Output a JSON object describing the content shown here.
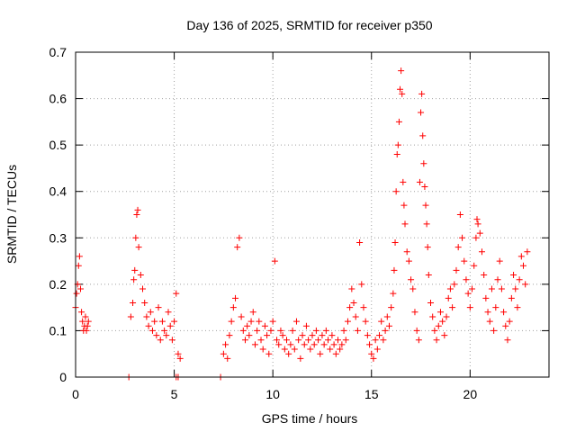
{
  "chart_data": {
    "type": "scatter",
    "title": "Day 136 of 2025, SRMTID for receiver p350",
    "xlabel": "GPS time / hours",
    "ylabel": "SRMTID / TECUs",
    "xlim": [
      0,
      24
    ],
    "ylim": [
      0,
      0.7
    ],
    "xticks": [
      {
        "value": 0,
        "label": "0"
      },
      {
        "value": 5,
        "label": "5"
      },
      {
        "value": 10,
        "label": "10"
      },
      {
        "value": 15,
        "label": "15"
      },
      {
        "value": 20,
        "label": "20"
      }
    ],
    "yticks": [
      {
        "value": 0,
        "label": "0"
      },
      {
        "value": 0.1,
        "label": "0.1"
      },
      {
        "value": 0.2,
        "label": "0.2"
      },
      {
        "value": 0.3,
        "label": "0.3"
      },
      {
        "value": 0.4,
        "label": "0.4"
      },
      {
        "value": 0.5,
        "label": "0.5"
      },
      {
        "value": 0.6,
        "label": "0.6"
      },
      {
        "value": 0.7,
        "label": "0.7"
      }
    ],
    "grid": true,
    "marker": "+",
    "color": "#ff0000",
    "series": [
      {
        "name": "SRMTID",
        "points": [
          [
            0.0,
            0.15
          ],
          [
            0.05,
            0.18
          ],
          [
            0.1,
            0.2
          ],
          [
            0.15,
            0.24
          ],
          [
            0.2,
            0.26
          ],
          [
            0.25,
            0.19
          ],
          [
            0.3,
            0.14
          ],
          [
            0.35,
            0.12
          ],
          [
            0.4,
            0.1
          ],
          [
            0.45,
            0.11
          ],
          [
            0.5,
            0.13
          ],
          [
            0.55,
            0.1
          ],
          [
            0.6,
            0.11
          ],
          [
            0.65,
            0.12
          ],
          [
            2.7,
            0.0
          ],
          [
            2.8,
            0.13
          ],
          [
            2.9,
            0.16
          ],
          [
            2.95,
            0.21
          ],
          [
            3.0,
            0.23
          ],
          [
            3.05,
            0.3
          ],
          [
            3.1,
            0.35
          ],
          [
            3.15,
            0.36
          ],
          [
            3.2,
            0.28
          ],
          [
            3.3,
            0.22
          ],
          [
            3.4,
            0.19
          ],
          [
            3.5,
            0.16
          ],
          [
            3.6,
            0.13
          ],
          [
            3.7,
            0.11
          ],
          [
            3.8,
            0.14
          ],
          [
            3.9,
            0.1
          ],
          [
            4.0,
            0.12
          ],
          [
            4.1,
            0.09
          ],
          [
            4.2,
            0.15
          ],
          [
            4.3,
            0.08
          ],
          [
            4.4,
            0.12
          ],
          [
            4.5,
            0.1
          ],
          [
            4.6,
            0.09
          ],
          [
            4.7,
            0.14
          ],
          [
            4.8,
            0.11
          ],
          [
            4.9,
            0.08
          ],
          [
            5.0,
            0.12
          ],
          [
            5.1,
            0.18
          ],
          [
            5.2,
            0.05
          ],
          [
            5.3,
            0.04
          ],
          [
            5.1,
            0.0
          ],
          [
            5.2,
            0.0
          ],
          [
            7.35,
            0.0
          ],
          [
            7.5,
            0.05
          ],
          [
            7.6,
            0.07
          ],
          [
            7.7,
            0.04
          ],
          [
            7.8,
            0.09
          ],
          [
            7.9,
            0.12
          ],
          [
            8.0,
            0.15
          ],
          [
            8.1,
            0.17
          ],
          [
            8.2,
            0.28
          ],
          [
            8.3,
            0.3
          ],
          [
            8.4,
            0.13
          ],
          [
            8.5,
            0.1
          ],
          [
            8.6,
            0.08
          ],
          [
            8.7,
            0.11
          ],
          [
            8.8,
            0.09
          ],
          [
            8.9,
            0.12
          ],
          [
            9.0,
            0.14
          ],
          [
            9.1,
            0.07
          ],
          [
            9.2,
            0.1
          ],
          [
            9.3,
            0.12
          ],
          [
            9.4,
            0.08
          ],
          [
            9.5,
            0.06
          ],
          [
            9.6,
            0.11
          ],
          [
            9.7,
            0.09
          ],
          [
            9.8,
            0.05
          ],
          [
            9.9,
            0.1
          ],
          [
            10.0,
            0.12
          ],
          [
            10.1,
            0.25
          ],
          [
            10.2,
            0.08
          ],
          [
            10.3,
            0.07
          ],
          [
            10.4,
            0.1
          ],
          [
            10.5,
            0.09
          ],
          [
            10.6,
            0.06
          ],
          [
            10.7,
            0.08
          ],
          [
            10.8,
            0.05
          ],
          [
            10.9,
            0.07
          ],
          [
            11.0,
            0.1
          ],
          [
            11.1,
            0.06
          ],
          [
            11.2,
            0.12
          ],
          [
            11.3,
            0.08
          ],
          [
            11.4,
            0.04
          ],
          [
            11.5,
            0.09
          ],
          [
            11.6,
            0.07
          ],
          [
            11.7,
            0.11
          ],
          [
            11.8,
            0.08
          ],
          [
            11.9,
            0.06
          ],
          [
            12.0,
            0.09
          ],
          [
            12.1,
            0.07
          ],
          [
            12.2,
            0.1
          ],
          [
            12.3,
            0.08
          ],
          [
            12.4,
            0.05
          ],
          [
            12.5,
            0.09
          ],
          [
            12.6,
            0.07
          ],
          [
            12.7,
            0.1
          ],
          [
            12.8,
            0.08
          ],
          [
            12.9,
            0.06
          ],
          [
            13.0,
            0.09
          ],
          [
            13.1,
            0.07
          ],
          [
            13.2,
            0.05
          ],
          [
            13.3,
            0.08
          ],
          [
            13.4,
            0.06
          ],
          [
            13.5,
            0.07
          ],
          [
            13.6,
            0.1
          ],
          [
            13.7,
            0.08
          ],
          [
            13.8,
            0.12
          ],
          [
            13.9,
            0.15
          ],
          [
            14.0,
            0.19
          ],
          [
            14.1,
            0.16
          ],
          [
            14.2,
            0.13
          ],
          [
            14.3,
            0.1
          ],
          [
            14.4,
            0.29
          ],
          [
            14.5,
            0.2
          ],
          [
            14.6,
            0.15
          ],
          [
            14.7,
            0.12
          ],
          [
            14.8,
            0.09
          ],
          [
            14.9,
            0.07
          ],
          [
            15.0,
            0.05
          ],
          [
            15.1,
            0.04
          ],
          [
            15.2,
            0.08
          ],
          [
            15.3,
            0.06
          ],
          [
            15.4,
            0.09
          ],
          [
            15.5,
            0.12
          ],
          [
            15.6,
            0.08
          ],
          [
            15.7,
            0.1
          ],
          [
            15.8,
            0.13
          ],
          [
            15.9,
            0.11
          ],
          [
            16.0,
            0.15
          ],
          [
            16.1,
            0.18
          ],
          [
            16.15,
            0.23
          ],
          [
            16.2,
            0.29
          ],
          [
            16.25,
            0.4
          ],
          [
            16.3,
            0.48
          ],
          [
            16.35,
            0.5
          ],
          [
            16.4,
            0.55
          ],
          [
            16.45,
            0.62
          ],
          [
            16.5,
            0.66
          ],
          [
            16.55,
            0.61
          ],
          [
            16.6,
            0.42
          ],
          [
            16.65,
            0.37
          ],
          [
            16.7,
            0.33
          ],
          [
            16.8,
            0.27
          ],
          [
            16.9,
            0.25
          ],
          [
            17.0,
            0.21
          ],
          [
            17.1,
            0.19
          ],
          [
            17.2,
            0.14
          ],
          [
            17.3,
            0.1
          ],
          [
            17.4,
            0.08
          ],
          [
            17.45,
            0.42
          ],
          [
            17.5,
            0.57
          ],
          [
            17.55,
            0.61
          ],
          [
            17.6,
            0.52
          ],
          [
            17.65,
            0.46
          ],
          [
            17.7,
            0.41
          ],
          [
            17.75,
            0.37
          ],
          [
            17.8,
            0.33
          ],
          [
            17.85,
            0.28
          ],
          [
            17.9,
            0.22
          ],
          [
            18.0,
            0.16
          ],
          [
            18.1,
            0.13
          ],
          [
            18.2,
            0.1
          ],
          [
            18.3,
            0.08
          ],
          [
            18.4,
            0.11
          ],
          [
            18.5,
            0.14
          ],
          [
            18.6,
            0.12
          ],
          [
            18.7,
            0.09
          ],
          [
            18.8,
            0.13
          ],
          [
            18.9,
            0.17
          ],
          [
            19.0,
            0.19
          ],
          [
            19.1,
            0.15
          ],
          [
            19.2,
            0.2
          ],
          [
            19.3,
            0.23
          ],
          [
            19.4,
            0.28
          ],
          [
            19.5,
            0.35
          ],
          [
            19.6,
            0.3
          ],
          [
            19.7,
            0.25
          ],
          [
            19.8,
            0.21
          ],
          [
            19.9,
            0.18
          ],
          [
            20.0,
            0.15
          ],
          [
            20.1,
            0.19
          ],
          [
            20.2,
            0.24
          ],
          [
            20.3,
            0.3
          ],
          [
            20.35,
            0.34
          ],
          [
            20.4,
            0.33
          ],
          [
            20.5,
            0.31
          ],
          [
            20.6,
            0.27
          ],
          [
            20.7,
            0.22
          ],
          [
            20.8,
            0.17
          ],
          [
            20.9,
            0.14
          ],
          [
            21.0,
            0.12
          ],
          [
            21.1,
            0.19
          ],
          [
            21.2,
            0.1
          ],
          [
            21.3,
            0.15
          ],
          [
            21.4,
            0.21
          ],
          [
            21.5,
            0.25
          ],
          [
            21.6,
            0.19
          ],
          [
            21.7,
            0.14
          ],
          [
            21.8,
            0.11
          ],
          [
            21.9,
            0.08
          ],
          [
            22.0,
            0.12
          ],
          [
            22.1,
            0.17
          ],
          [
            22.2,
            0.22
          ],
          [
            22.3,
            0.19
          ],
          [
            22.4,
            0.15
          ],
          [
            22.5,
            0.21
          ],
          [
            22.6,
            0.26
          ],
          [
            22.7,
            0.24
          ],
          [
            22.8,
            0.2
          ],
          [
            22.9,
            0.27
          ]
        ]
      }
    ]
  }
}
